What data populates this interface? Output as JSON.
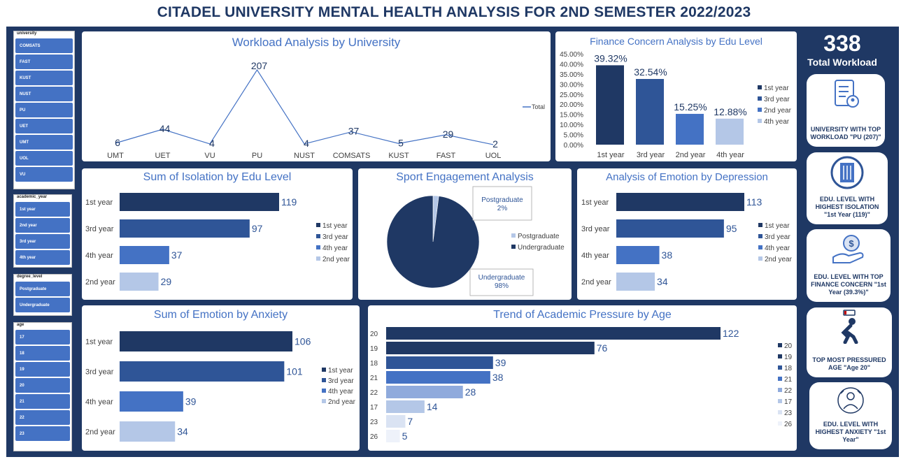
{
  "title": "CITADEL UNIVERSITY MENTAL HEALTH ANALYSIS FOR 2ND SEMESTER 2022/2023",
  "slicers": {
    "university": {
      "header": "university",
      "items": [
        "COMSATS",
        "FAST",
        "KUST",
        "NUST",
        "PU",
        "UET",
        "UMT",
        "UOL",
        "VU"
      ]
    },
    "academic_year": {
      "header": "academic_year",
      "items": [
        "1st year",
        "2nd year",
        "3rd year",
        "4th year"
      ]
    },
    "degree_level": {
      "header": "degree_level",
      "items": [
        "Postgraduate",
        "Undergraduate"
      ]
    },
    "age": {
      "header": "age",
      "items": [
        "17",
        "18",
        "19",
        "20",
        "21",
        "22",
        "23"
      ]
    }
  },
  "kpi": {
    "value": "338",
    "label": "Total Workload"
  },
  "cards": [
    {
      "icon": "clipboard-icon",
      "text": "UNIVERSITY WITH TOP WORKLOAD \"PU (207)\""
    },
    {
      "icon": "door-icon",
      "text": "EDU. LEVEL WITH HIGHEST ISOLATION \"1st Year (119)\""
    },
    {
      "icon": "money-hand-icon",
      "text": "EDU. LEVEL WITH TOP FINANCE CONCERN \"1st Year (39.3%)\""
    },
    {
      "icon": "tired-person-icon",
      "text": "TOP MOST PRESSURED AGE \"Age 20\""
    },
    {
      "icon": "anxious-person-icon",
      "text": "EDU. LEVEL WITH HIGHEST ANXIETY \"1st Year\""
    }
  ],
  "colors": {
    "c1": "#1f3864",
    "c2": "#2f5597",
    "c3": "#4472c4",
    "c4": "#b4c7e7",
    "c5": "#8faadc",
    "c6": "#dae3f3",
    "c7": "#eef2fa"
  },
  "chart_data": [
    {
      "id": "workload",
      "type": "line",
      "title": "Workload Analysis by University",
      "categories": [
        "UMT",
        "UET",
        "VU",
        "PU",
        "NUST",
        "COMSATS",
        "KUST",
        "FAST",
        "UOL"
      ],
      "series": [
        {
          "name": "Total",
          "values": [
            6,
            44,
            4,
            207,
            4,
            37,
            5,
            29,
            2
          ]
        }
      ]
    },
    {
      "id": "finance",
      "type": "bar",
      "title": "Finance Concern  Analysis by Edu Level",
      "categories": [
        "1st year",
        "3rd year",
        "2nd year",
        "4th year"
      ],
      "values": [
        39.32,
        32.54,
        15.25,
        12.88
      ],
      "value_labels": [
        "39.32%",
        "32.54%",
        "15.25%",
        "12.88%"
      ],
      "ylim": [
        0,
        45
      ],
      "yticks": [
        "0.00%",
        "5.00%",
        "10.00%",
        "15.00%",
        "20.00%",
        "25.00%",
        "30.00%",
        "35.00%",
        "40.00%",
        "45.00%"
      ],
      "legend": [
        "1st year",
        "3rd year",
        "2nd year",
        "4th year"
      ]
    },
    {
      "id": "isolation",
      "type": "bar",
      "title": "Sum of Isolation by Edu Level",
      "categories": [
        "1st year",
        "3rd year",
        "4th year",
        "2nd year"
      ],
      "values": [
        119,
        97,
        37,
        29
      ],
      "legend": [
        "1st year",
        "3rd year",
        "4th year",
        "2nd year"
      ]
    },
    {
      "id": "sport",
      "type": "pie",
      "title": "Sport Engagement Analysis",
      "categories": [
        "Postgraduate",
        "Undergraduate"
      ],
      "values": [
        2,
        98
      ],
      "callouts": [
        {
          "name": "Postgraduate",
          "pct": "2%"
        },
        {
          "name": "Undergraduate",
          "pct": "98%"
        }
      ],
      "legend": [
        "Postgraduate",
        "Undergraduate"
      ]
    },
    {
      "id": "depression",
      "type": "bar",
      "title": "Analysis of Emotion by Depression",
      "categories": [
        "1st year",
        "3rd year",
        "4th year",
        "2nd year"
      ],
      "values": [
        113,
        95,
        38,
        34
      ],
      "legend": [
        "1st year",
        "3rd year",
        "4th year",
        "2nd year"
      ]
    },
    {
      "id": "anxiety",
      "type": "bar",
      "title": "Sum of Emotion by Anxiety",
      "categories": [
        "1st year",
        "3rd year",
        "4th year",
        "2nd year"
      ],
      "values": [
        106,
        101,
        39,
        34
      ],
      "legend": [
        "1st year",
        "3rd year",
        "4th year",
        "2nd year"
      ]
    },
    {
      "id": "pressure",
      "type": "bar",
      "title": "Trend of Academic Pressure by Age",
      "categories": [
        "20",
        "19",
        "18",
        "21",
        "22",
        "17",
        "23",
        "26"
      ],
      "values": [
        122,
        76,
        39,
        38,
        28,
        14,
        7,
        5
      ],
      "legend": [
        "20",
        "19",
        "18",
        "21",
        "22",
        "17",
        "23",
        "26"
      ]
    }
  ]
}
